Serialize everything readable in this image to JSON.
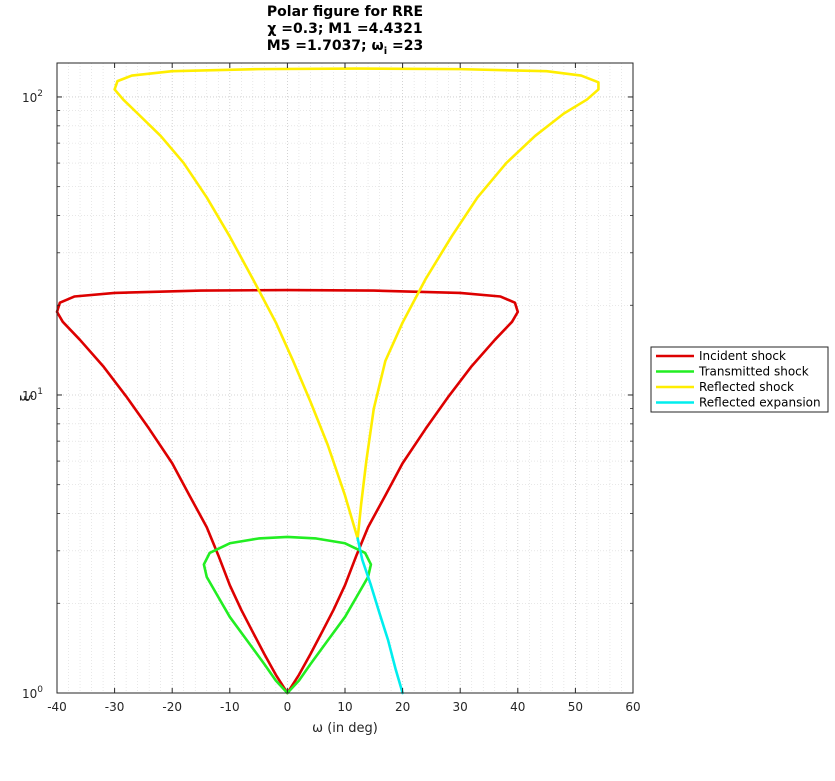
{
  "chart_data": {
    "type": "line",
    "title": {
      "line1": "Polar figure for RRE",
      "line2": "χ =0.3; M1 =4.4321",
      "line3_prefix": "M5 =1.7037; ω",
      "line3_sub": "i",
      "line3_suffix": " =23"
    },
    "xlabel": "ω (in deg)",
    "ylabel": "ξ",
    "xlim": [
      -40,
      60
    ],
    "ylim": [
      1,
      130
    ],
    "y_scale": "log",
    "grid": true,
    "minor_grid": true,
    "legend_position": "outside-right",
    "x_ticks": [
      -40,
      -30,
      -20,
      -10,
      0,
      10,
      20,
      30,
      40,
      50,
      60
    ],
    "x_tick_labels": [
      "-40",
      "-30",
      "-20",
      "-10",
      "0",
      "10",
      "20",
      "30",
      "40",
      "50",
      "60"
    ],
    "y_ticks": [
      {
        "value": 1,
        "base": "10",
        "exp": "0"
      },
      {
        "value": 10,
        "base": "10",
        "exp": "1"
      },
      {
        "value": 100,
        "base": "10",
        "exp": "2"
      }
    ],
    "series": [
      {
        "name": "Incident shock",
        "color": "#dd0000",
        "points": [
          [
            0,
            1
          ],
          [
            -2,
            1.15
          ],
          [
            -4,
            1.35
          ],
          [
            -6,
            1.6
          ],
          [
            -8,
            1.9
          ],
          [
            -10,
            2.3
          ],
          [
            -12,
            2.9
          ],
          [
            -14,
            3.6
          ],
          [
            -17,
            4.6
          ],
          [
            -20,
            5.9
          ],
          [
            -24,
            7.7
          ],
          [
            -28,
            9.9
          ],
          [
            -32,
            12.5
          ],
          [
            -36,
            15.3
          ],
          [
            -39,
            17.6
          ],
          [
            -40,
            19
          ],
          [
            -39.5,
            20.4
          ],
          [
            -37,
            21.4
          ],
          [
            -30,
            22.0
          ],
          [
            -15,
            22.4
          ],
          [
            0,
            22.5
          ],
          [
            15,
            22.4
          ],
          [
            30,
            22.0
          ],
          [
            37,
            21.4
          ],
          [
            39.5,
            20.4
          ],
          [
            40,
            19
          ],
          [
            39,
            17.6
          ],
          [
            36,
            15.3
          ],
          [
            32,
            12.5
          ],
          [
            28,
            9.9
          ],
          [
            24,
            7.7
          ],
          [
            20,
            5.9
          ],
          [
            17,
            4.6
          ],
          [
            14,
            3.6
          ],
          [
            12,
            2.9
          ],
          [
            10,
            2.3
          ],
          [
            8,
            1.9
          ],
          [
            6,
            1.6
          ],
          [
            4,
            1.35
          ],
          [
            2,
            1.15
          ],
          [
            0,
            1
          ]
        ]
      },
      {
        "name": "Transmitted shock",
        "color": "#22ee22",
        "points": [
          [
            0,
            1
          ],
          [
            -2,
            1.1
          ],
          [
            -4,
            1.25
          ],
          [
            -7,
            1.5
          ],
          [
            -10,
            1.8
          ],
          [
            -12,
            2.1
          ],
          [
            -14,
            2.45
          ],
          [
            -14.5,
            2.7
          ],
          [
            -13.5,
            2.95
          ],
          [
            -10,
            3.18
          ],
          [
            -5,
            3.3
          ],
          [
            0,
            3.34
          ],
          [
            5,
            3.3
          ],
          [
            10,
            3.18
          ],
          [
            13.5,
            2.95
          ],
          [
            14.5,
            2.7
          ],
          [
            14,
            2.45
          ],
          [
            12,
            2.1
          ],
          [
            10,
            1.8
          ],
          [
            7,
            1.5
          ],
          [
            4,
            1.25
          ],
          [
            2,
            1.1
          ],
          [
            0,
            1
          ]
        ]
      },
      {
        "name": "Reflected shock",
        "color": "#ffee00",
        "points": [
          [
            12.2,
            3.3
          ],
          [
            10,
            4.6
          ],
          [
            7,
            6.8
          ],
          [
            4,
            9.5
          ],
          [
            1,
            13
          ],
          [
            -2,
            17.5
          ],
          [
            -6,
            24.5
          ],
          [
            -10,
            34
          ],
          [
            -14,
            46
          ],
          [
            -18,
            60
          ],
          [
            -22,
            74
          ],
          [
            -26,
            88
          ],
          [
            -28.5,
            98
          ],
          [
            -30,
            106
          ],
          [
            -29.5,
            113
          ],
          [
            -27,
            118
          ],
          [
            -20,
            122
          ],
          [
            -5,
            124
          ],
          [
            12,
            124.5
          ],
          [
            30,
            124
          ],
          [
            45,
            122
          ],
          [
            51,
            118
          ],
          [
            54,
            112
          ],
          [
            54,
            106
          ],
          [
            52,
            98
          ],
          [
            48,
            88
          ],
          [
            43,
            74
          ],
          [
            38,
            60
          ],
          [
            33,
            46
          ],
          [
            28.5,
            34
          ],
          [
            24,
            24.5
          ],
          [
            20,
            17.5
          ],
          [
            17,
            13
          ],
          [
            15,
            9
          ],
          [
            13.7,
            6
          ],
          [
            12.8,
            4.3
          ],
          [
            12.2,
            3.3
          ]
        ]
      },
      {
        "name": "Reflected expansion",
        "color": "#00eeee",
        "points": [
          [
            12.2,
            3.3
          ],
          [
            13,
            2.8
          ],
          [
            14.5,
            2.3
          ],
          [
            16,
            1.85
          ],
          [
            17.5,
            1.5
          ],
          [
            18.8,
            1.2
          ],
          [
            20,
            1
          ]
        ]
      }
    ]
  }
}
